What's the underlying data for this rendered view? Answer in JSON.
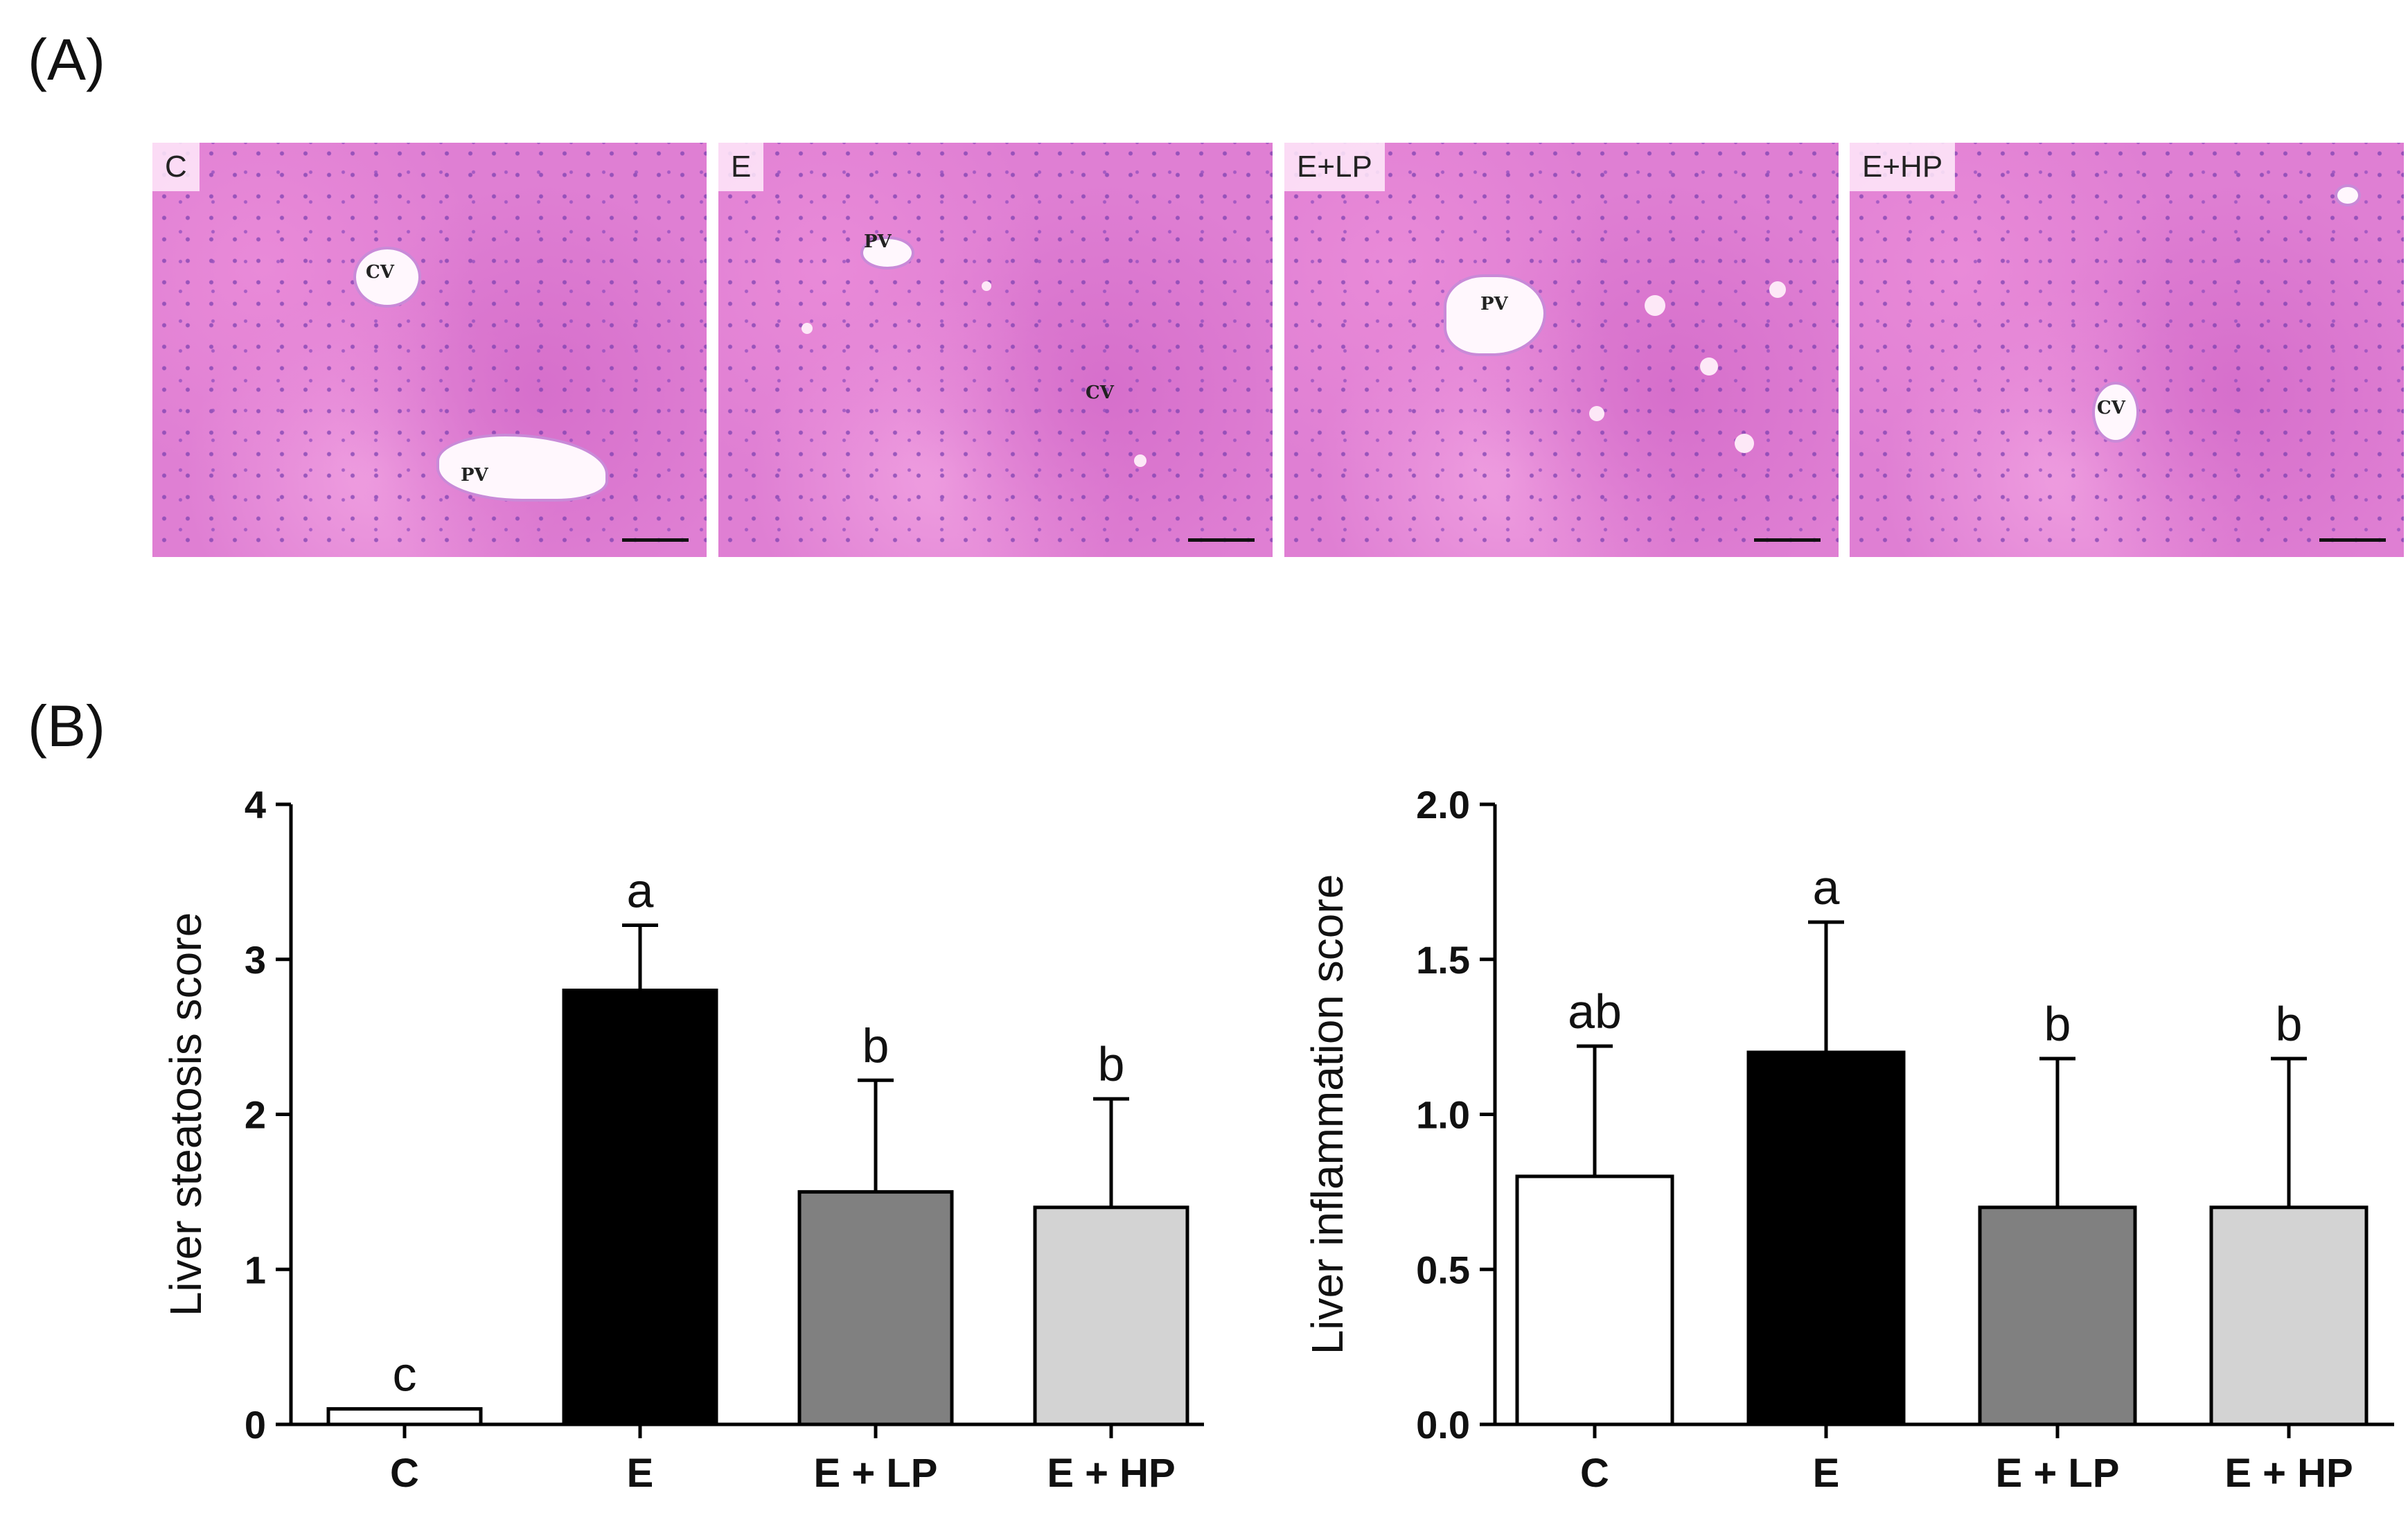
{
  "panel_a": {
    "label": "(A)",
    "images": [
      {
        "tag": "C",
        "vessels": [
          "CV",
          "PV"
        ]
      },
      {
        "tag": "E",
        "vessels": [
          "PV",
          "CV"
        ]
      },
      {
        "tag": "E+LP",
        "vessels": [
          "PV"
        ]
      },
      {
        "tag": "E+HP",
        "vessels": [
          "CV"
        ]
      }
    ]
  },
  "panel_b": {
    "label": "(B)"
  },
  "chart_data": [
    {
      "type": "bar",
      "ylabel": "Liver steatosis score",
      "categories": [
        "C",
        "E",
        "E + LP",
        "E + HP"
      ],
      "values": [
        0.1,
        2.8,
        1.5,
        1.4
      ],
      "errors": [
        0,
        0.42,
        0.72,
        0.7
      ],
      "significance": [
        "c",
        "a",
        "b",
        "b"
      ],
      "colors": [
        "#ffffff",
        "#000000",
        "#808080",
        "#d3d3d3"
      ],
      "ylim": [
        0,
        4
      ],
      "yticks": [
        "0",
        "1",
        "2",
        "3",
        "4"
      ]
    },
    {
      "type": "bar",
      "ylabel": "Liver inflammation score",
      "categories": [
        "C",
        "E",
        "E + LP",
        "E + HP"
      ],
      "values": [
        0.8,
        1.2,
        0.7,
        0.7
      ],
      "errors": [
        0.42,
        0.42,
        0.48,
        0.48
      ],
      "significance": [
        "ab",
        "a",
        "b",
        "b"
      ],
      "colors": [
        "#ffffff",
        "#000000",
        "#808080",
        "#d3d3d3"
      ],
      "ylim": [
        0,
        2
      ],
      "yticks": [
        "0.0",
        "0.5",
        "1.0",
        "1.5",
        "2.0"
      ]
    }
  ]
}
